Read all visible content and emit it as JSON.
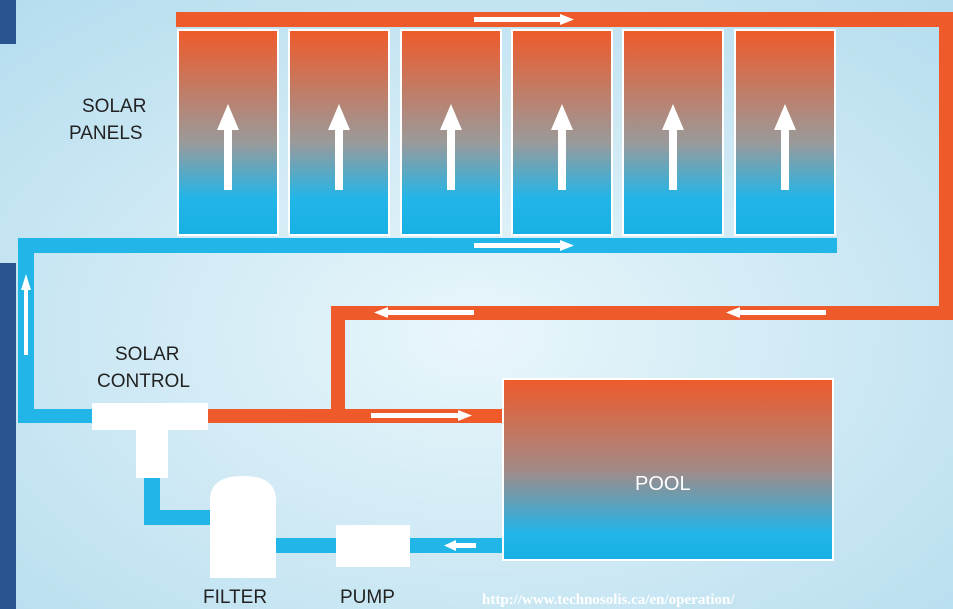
{
  "labels": {
    "solar_panels_line1": "SOLAR",
    "solar_panels_line2": "PANELS",
    "solar_control_line1": "SOLAR",
    "solar_control_line2": "CONTROL",
    "pool": "POOL",
    "filter": "FILTER",
    "pump": "PUMP",
    "source_url": "http://www.technosolis.ca/en/operation/"
  },
  "colors": {
    "hot": "#ef5a2a",
    "cold": "#22b5e8",
    "frame": "#2a5490",
    "background": "#dceff8",
    "component": "#ffffff"
  },
  "panels": [
    {
      "name": "panel-1",
      "flow": "up"
    },
    {
      "name": "panel-2",
      "flow": "up"
    },
    {
      "name": "panel-3",
      "flow": "up"
    },
    {
      "name": "panel-4",
      "flow": "up"
    },
    {
      "name": "panel-5",
      "flow": "up"
    },
    {
      "name": "panel-6",
      "flow": "up"
    }
  ]
}
